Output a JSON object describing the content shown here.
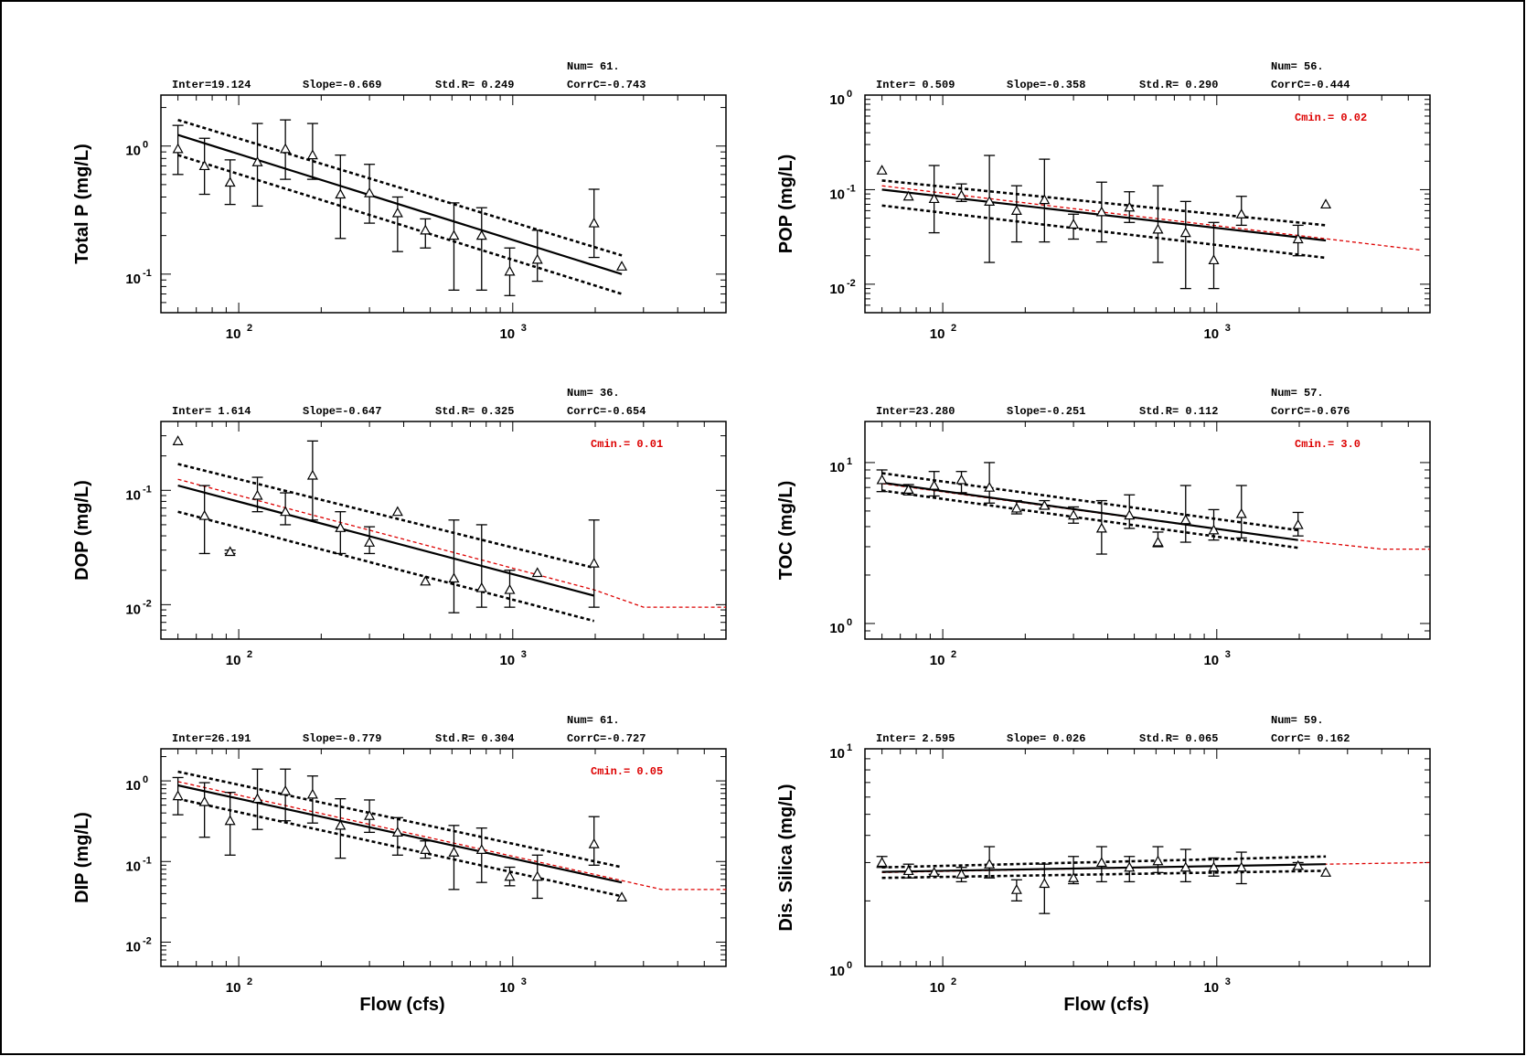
{
  "colors": {
    "fit": "#000000",
    "cmin_fit": "#dd0000",
    "cmin_text": "#dd0000",
    "marker": "#000000"
  },
  "chart_data": [
    {
      "id": "p1",
      "type": "scatter",
      "xscale": "log",
      "yscale": "log",
      "xlabel": "",
      "ylabel": "Total P (mg/L)",
      "xlim": [
        52,
        6000
      ],
      "ylim": [
        0.05,
        2.5
      ],
      "xticks": [
        {
          "value": 100,
          "base": "10",
          "exp": "2"
        },
        {
          "value": 1000,
          "base": "10",
          "exp": "3"
        }
      ],
      "yticks": [
        {
          "value": 1,
          "base": "10",
          "exp": "0"
        },
        {
          "value": 0.1,
          "base": "10",
          "exp": "-1"
        }
      ],
      "stats": {
        "inter": "Inter=19.124",
        "slope": "Slope=-0.669",
        "stdr": "Std.R= 0.249",
        "num": "Num= 61.",
        "corr": "CorrC=-0.743"
      },
      "cmin": "",
      "points": [
        {
          "x": 60,
          "y": 0.95,
          "lo": 0.6,
          "hi": 1.45
        },
        {
          "x": 75,
          "y": 0.7,
          "lo": 0.42,
          "hi": 1.15
        },
        {
          "x": 93,
          "y": 0.52,
          "lo": 0.35,
          "hi": 0.78
        },
        {
          "x": 117,
          "y": 0.75,
          "lo": 0.34,
          "hi": 1.5
        },
        {
          "x": 148,
          "y": 0.95,
          "lo": 0.55,
          "hi": 1.6
        },
        {
          "x": 186,
          "y": 0.85,
          "lo": 0.55,
          "hi": 1.5
        },
        {
          "x": 235,
          "y": 0.42,
          "lo": 0.19,
          "hi": 0.85
        },
        {
          "x": 300,
          "y": 0.43,
          "lo": 0.25,
          "hi": 0.72
        },
        {
          "x": 380,
          "y": 0.3,
          "lo": 0.15,
          "hi": 0.4
        },
        {
          "x": 480,
          "y": 0.22,
          "lo": 0.16,
          "hi": 0.27
        },
        {
          "x": 610,
          "y": 0.2,
          "lo": 0.075,
          "hi": 0.36
        },
        {
          "x": 770,
          "y": 0.2,
          "lo": 0.075,
          "hi": 0.33
        },
        {
          "x": 975,
          "y": 0.105,
          "lo": 0.068,
          "hi": 0.16
        },
        {
          "x": 1230,
          "y": 0.13,
          "lo": 0.088,
          "hi": 0.22
        },
        {
          "x": 1980,
          "y": 0.25,
          "lo": 0.135,
          "hi": 0.46
        },
        {
          "x": 2500,
          "y": 0.115
        }
      ],
      "fit": {
        "x": [
          60,
          2500
        ],
        "y": [
          1.22,
          0.1
        ]
      },
      "upper": {
        "x": [
          60,
          2500
        ],
        "y": [
          1.6,
          0.14
        ]
      },
      "lower": {
        "x": [
          60,
          2500
        ],
        "y": [
          0.85,
          0.07
        ]
      },
      "red": null
    },
    {
      "id": "p2",
      "type": "scatter",
      "xscale": "log",
      "yscale": "log",
      "xlabel": "",
      "ylabel": "POP (mg/L)",
      "xlim": [
        52,
        6000
      ],
      "ylim": [
        0.005,
        1.0
      ],
      "xticks": [
        {
          "value": 100,
          "base": "10",
          "exp": "2"
        },
        {
          "value": 1000,
          "base": "10",
          "exp": "3"
        }
      ],
      "yticks": [
        {
          "value": 1,
          "base": "10",
          "exp": "0"
        },
        {
          "value": 0.1,
          "base": "10",
          "exp": "-1"
        },
        {
          "value": 0.01,
          "base": "10",
          "exp": "-2"
        }
      ],
      "stats": {
        "inter": "Inter= 0.509",
        "slope": "Slope=-0.358",
        "stdr": "Std.R= 0.290",
        "num": "Num= 56.",
        "corr": "CorrC=-0.444"
      },
      "cmin": "Cmin.= 0.02",
      "points": [
        {
          "x": 60,
          "y": 0.16
        },
        {
          "x": 75,
          "y": 0.085
        },
        {
          "x": 93,
          "y": 0.08,
          "lo": 0.035,
          "hi": 0.18
        },
        {
          "x": 117,
          "y": 0.087,
          "lo": 0.075,
          "hi": 0.115
        },
        {
          "x": 148,
          "y": 0.075,
          "lo": 0.017,
          "hi": 0.23
        },
        {
          "x": 186,
          "y": 0.06,
          "lo": 0.028,
          "hi": 0.11
        },
        {
          "x": 235,
          "y": 0.078,
          "lo": 0.028,
          "hi": 0.21
        },
        {
          "x": 300,
          "y": 0.043,
          "lo": 0.03,
          "hi": 0.055
        },
        {
          "x": 380,
          "y": 0.058,
          "lo": 0.028,
          "hi": 0.12
        },
        {
          "x": 480,
          "y": 0.065,
          "lo": 0.045,
          "hi": 0.095
        },
        {
          "x": 610,
          "y": 0.038,
          "lo": 0.017,
          "hi": 0.11
        },
        {
          "x": 770,
          "y": 0.035,
          "lo": 0.009,
          "hi": 0.075
        },
        {
          "x": 975,
          "y": 0.018,
          "lo": 0.009,
          "hi": 0.045
        },
        {
          "x": 1230,
          "y": 0.055,
          "lo": 0.042,
          "hi": 0.085
        },
        {
          "x": 1980,
          "y": 0.03,
          "lo": 0.02,
          "hi": 0.042
        },
        {
          "x": 2500,
          "y": 0.07
        }
      ],
      "fit": {
        "x": [
          60,
          2500
        ],
        "y": [
          0.1,
          0.029
        ]
      },
      "upper": {
        "x": [
          60,
          2500
        ],
        "y": [
          0.125,
          0.042
        ]
      },
      "lower": {
        "x": [
          60,
          2500
        ],
        "y": [
          0.068,
          0.019
        ]
      },
      "red": {
        "x": [
          60,
          5500
        ],
        "y": [
          0.11,
          0.023
        ]
      }
    },
    {
      "id": "p3",
      "type": "scatter",
      "xscale": "log",
      "yscale": "log",
      "xlabel": "",
      "ylabel": "DOP (mg/L)",
      "xlim": [
        52,
        6000
      ],
      "ylim": [
        0.005,
        0.4
      ],
      "xticks": [
        {
          "value": 100,
          "base": "10",
          "exp": "2"
        },
        {
          "value": 1000,
          "base": "10",
          "exp": "3"
        }
      ],
      "yticks": [
        {
          "value": 0.1,
          "base": "10",
          "exp": "-1"
        },
        {
          "value": 0.01,
          "base": "10",
          "exp": "-2"
        }
      ],
      "stats": {
        "inter": "Inter= 1.614",
        "slope": "Slope=-0.647",
        "stdr": "Std.R= 0.325",
        "num": "Num= 36.",
        "corr": "CorrC=-0.654"
      },
      "cmin": "Cmin.= 0.01",
      "points": [
        {
          "x": 60,
          "y": 0.27
        },
        {
          "x": 75,
          "y": 0.06,
          "lo": 0.028,
          "hi": 0.11
        },
        {
          "x": 93,
          "y": 0.029,
          "lo": 0.028,
          "hi": 0.03
        },
        {
          "x": 117,
          "y": 0.09,
          "lo": 0.065,
          "hi": 0.13
        },
        {
          "x": 148,
          "y": 0.065,
          "lo": 0.05,
          "hi": 0.095
        },
        {
          "x": 186,
          "y": 0.135,
          "lo": 0.055,
          "hi": 0.27
        },
        {
          "x": 235,
          "y": 0.047,
          "lo": 0.028,
          "hi": 0.065
        },
        {
          "x": 300,
          "y": 0.035,
          "lo": 0.028,
          "hi": 0.048
        },
        {
          "x": 380,
          "y": 0.065
        },
        {
          "x": 480,
          "y": 0.016
        },
        {
          "x": 610,
          "y": 0.017,
          "lo": 0.0085,
          "hi": 0.055
        },
        {
          "x": 770,
          "y": 0.014,
          "lo": 0.0095,
          "hi": 0.05
        },
        {
          "x": 975,
          "y": 0.0135,
          "lo": 0.0095,
          "hi": 0.02
        },
        {
          "x": 1230,
          "y": 0.019
        },
        {
          "x": 1980,
          "y": 0.023,
          "lo": 0.0095,
          "hi": 0.055
        }
      ],
      "fit": {
        "x": [
          60,
          1980
        ],
        "y": [
          0.11,
          0.012
        ]
      },
      "upper": {
        "x": [
          60,
          1980
        ],
        "y": [
          0.17,
          0.021
        ]
      },
      "lower": {
        "x": [
          60,
          1980
        ],
        "y": [
          0.065,
          0.0072
        ]
      },
      "red": {
        "x": [
          60,
          1980,
          3000,
          6000
        ],
        "y": [
          0.125,
          0.0135,
          0.0095,
          0.0095
        ]
      }
    },
    {
      "id": "p4",
      "type": "scatter",
      "xscale": "log",
      "yscale": "log",
      "xlabel": "",
      "ylabel": "TOC (mg/L)",
      "xlim": [
        52,
        6000
      ],
      "ylim": [
        0.8,
        18
      ],
      "xticks": [
        {
          "value": 100,
          "base": "10",
          "exp": "2"
        },
        {
          "value": 1000,
          "base": "10",
          "exp": "3"
        }
      ],
      "yticks": [
        {
          "value": 10,
          "base": "10",
          "exp": "1"
        },
        {
          "value": 1,
          "base": "10",
          "exp": "0"
        }
      ],
      "stats": {
        "inter": "Inter=23.280",
        "slope": "Slope=-0.251",
        "stdr": "Std.R= 0.112",
        "num": "Num= 57.",
        "corr": "CorrC=-0.676"
      },
      "cmin": "Cmin.= 3.0",
      "points": [
        {
          "x": 60,
          "y": 7.8,
          "lo": 6.6,
          "hi": 9.0
        },
        {
          "x": 75,
          "y": 6.8,
          "lo": 6.3,
          "hi": 7.3
        },
        {
          "x": 93,
          "y": 7.2,
          "lo": 6.2,
          "hi": 8.8
        },
        {
          "x": 117,
          "y": 7.8,
          "lo": 6.5,
          "hi": 8.8
        },
        {
          "x": 148,
          "y": 7.0,
          "lo": 5.6,
          "hi": 10.0
        },
        {
          "x": 186,
          "y": 5.2,
          "lo": 4.8,
          "hi": 5.8
        },
        {
          "x": 235,
          "y": 5.4,
          "lo": 5.2,
          "hi": 5.8
        },
        {
          "x": 300,
          "y": 4.7,
          "lo": 4.2,
          "hi": 5.3
        },
        {
          "x": 380,
          "y": 3.9,
          "lo": 2.7,
          "hi": 5.8
        },
        {
          "x": 480,
          "y": 4.7,
          "lo": 3.9,
          "hi": 6.3
        },
        {
          "x": 610,
          "y": 3.2,
          "lo": 3.0,
          "hi": 3.7
        },
        {
          "x": 770,
          "y": 4.4,
          "lo": 3.2,
          "hi": 7.2
        },
        {
          "x": 975,
          "y": 3.8,
          "lo": 3.3,
          "hi": 5.1
        },
        {
          "x": 1230,
          "y": 4.8,
          "lo": 3.4,
          "hi": 7.2
        },
        {
          "x": 1980,
          "y": 4.1,
          "lo": 3.5,
          "hi": 4.9
        }
      ],
      "fit": {
        "x": [
          60,
          1980
        ],
        "y": [
          7.5,
          3.3
        ]
      },
      "upper": {
        "x": [
          60,
          1980
        ],
        "y": [
          8.6,
          3.8
        ]
      },
      "lower": {
        "x": [
          60,
          1980
        ],
        "y": [
          6.7,
          2.95
        ]
      },
      "red": {
        "x": [
          60,
          1980,
          4000,
          6000
        ],
        "y": [
          7.4,
          3.3,
          2.9,
          2.9
        ]
      }
    },
    {
      "id": "p5",
      "type": "scatter",
      "xscale": "log",
      "yscale": "log",
      "xlabel": "Flow (cfs)",
      "ylabel": "DIP (mg/L)",
      "xlim": [
        52,
        6000
      ],
      "ylim": [
        0.005,
        2.5
      ],
      "xticks": [
        {
          "value": 100,
          "base": "10",
          "exp": "2"
        },
        {
          "value": 1000,
          "base": "10",
          "exp": "3"
        }
      ],
      "yticks": [
        {
          "value": 1,
          "base": "10",
          "exp": "0"
        },
        {
          "value": 0.1,
          "base": "10",
          "exp": "-1"
        },
        {
          "value": 0.01,
          "base": "10",
          "exp": "-2"
        }
      ],
      "stats": {
        "inter": "Inter=26.191",
        "slope": "Slope=-0.779",
        "stdr": "Std.R= 0.304",
        "num": "Num= 61.",
        "corr": "CorrC=-0.727"
      },
      "cmin": "Cmin.= 0.05",
      "points": [
        {
          "x": 60,
          "y": 0.65,
          "lo": 0.38,
          "hi": 1.1
        },
        {
          "x": 75,
          "y": 0.55,
          "lo": 0.2,
          "hi": 0.95
        },
        {
          "x": 93,
          "y": 0.32,
          "lo": 0.12,
          "hi": 0.72
        },
        {
          "x": 117,
          "y": 0.6,
          "lo": 0.25,
          "hi": 1.4
        },
        {
          "x": 148,
          "y": 0.75,
          "lo": 0.32,
          "hi": 1.4
        },
        {
          "x": 186,
          "y": 0.68,
          "lo": 0.3,
          "hi": 1.15
        },
        {
          "x": 235,
          "y": 0.28,
          "lo": 0.11,
          "hi": 0.6
        },
        {
          "x": 300,
          "y": 0.37,
          "lo": 0.23,
          "hi": 0.58
        },
        {
          "x": 380,
          "y": 0.23,
          "lo": 0.12,
          "hi": 0.35
        },
        {
          "x": 480,
          "y": 0.14,
          "lo": 0.11,
          "hi": 0.18
        },
        {
          "x": 610,
          "y": 0.13,
          "lo": 0.045,
          "hi": 0.28
        },
        {
          "x": 770,
          "y": 0.14,
          "lo": 0.055,
          "hi": 0.26
        },
        {
          "x": 975,
          "y": 0.065,
          "lo": 0.05,
          "hi": 0.085
        },
        {
          "x": 1230,
          "y": 0.065,
          "lo": 0.035,
          "hi": 0.12
        },
        {
          "x": 1980,
          "y": 0.165,
          "lo": 0.09,
          "hi": 0.36
        },
        {
          "x": 2500,
          "y": 0.036
        }
      ],
      "fit": {
        "x": [
          60,
          2500
        ],
        "y": [
          0.88,
          0.055
        ]
      },
      "upper": {
        "x": [
          60,
          2500
        ],
        "y": [
          1.3,
          0.085
        ]
      },
      "lower": {
        "x": [
          60,
          2500
        ],
        "y": [
          0.6,
          0.037
        ]
      },
      "red": {
        "x": [
          60,
          2500,
          3500,
          6000
        ],
        "y": [
          0.98,
          0.058,
          0.045,
          0.045
        ]
      }
    },
    {
      "id": "p6",
      "type": "scatter",
      "xscale": "log",
      "yscale": "log",
      "xlabel": "Flow (cfs)",
      "ylabel": "Dis. Silica (mg/L)",
      "xlim": [
        52,
        6000
      ],
      "ylim": [
        1,
        10
      ],
      "xticks": [
        {
          "value": 100,
          "base": "10",
          "exp": "2"
        },
        {
          "value": 1000,
          "base": "10",
          "exp": "3"
        }
      ],
      "yticks": [
        {
          "value": 10,
          "base": "10",
          "exp": "1"
        },
        {
          "value": 1,
          "base": "10",
          "exp": "0"
        }
      ],
      "stats": {
        "inter": "Inter= 2.595",
        "slope": "Slope= 0.026",
        "stdr": "Std.R= 0.065",
        "num": "Num= 59.",
        "corr": "CorrC= 0.162"
      },
      "cmin": "",
      "points": [
        {
          "x": 60,
          "y": 3.0,
          "lo": 2.85,
          "hi": 3.2
        },
        {
          "x": 75,
          "y": 2.75,
          "lo": 2.55,
          "hi": 2.95
        },
        {
          "x": 93,
          "y": 2.7,
          "lo": 2.65,
          "hi": 2.75
        },
        {
          "x": 117,
          "y": 2.65,
          "lo": 2.45,
          "hi": 2.85
        },
        {
          "x": 148,
          "y": 2.95,
          "lo": 2.55,
          "hi": 3.55
        },
        {
          "x": 186,
          "y": 2.25,
          "lo": 2.0,
          "hi": 2.5
        },
        {
          "x": 235,
          "y": 2.4,
          "lo": 1.75,
          "hi": 2.95
        },
        {
          "x": 300,
          "y": 2.55,
          "lo": 2.4,
          "hi": 3.2
        },
        {
          "x": 380,
          "y": 3.0,
          "lo": 2.45,
          "hi": 3.55
        },
        {
          "x": 480,
          "y": 2.85,
          "lo": 2.45,
          "hi": 3.2
        },
        {
          "x": 610,
          "y": 3.05,
          "lo": 2.7,
          "hi": 3.55
        },
        {
          "x": 770,
          "y": 2.85,
          "lo": 2.45,
          "hi": 3.45
        },
        {
          "x": 975,
          "y": 2.85,
          "lo": 2.6,
          "hi": 3.15
        },
        {
          "x": 1230,
          "y": 2.85,
          "lo": 2.4,
          "hi": 3.35
        },
        {
          "x": 1980,
          "y": 2.9,
          "lo": 2.8,
          "hi": 3.0
        },
        {
          "x": 2500,
          "y": 2.7
        }
      ],
      "fit": {
        "x": [
          60,
          2500
        ],
        "y": [
          2.72,
          2.95
        ]
      },
      "upper": {
        "x": [
          60,
          2500
        ],
        "y": [
          2.85,
          3.2
        ]
      },
      "lower": {
        "x": [
          60,
          2500
        ],
        "y": [
          2.55,
          2.75
        ]
      },
      "red": {
        "x": [
          60,
          2500,
          6000
        ],
        "y": [
          2.7,
          2.95,
          3.0
        ]
      }
    }
  ]
}
